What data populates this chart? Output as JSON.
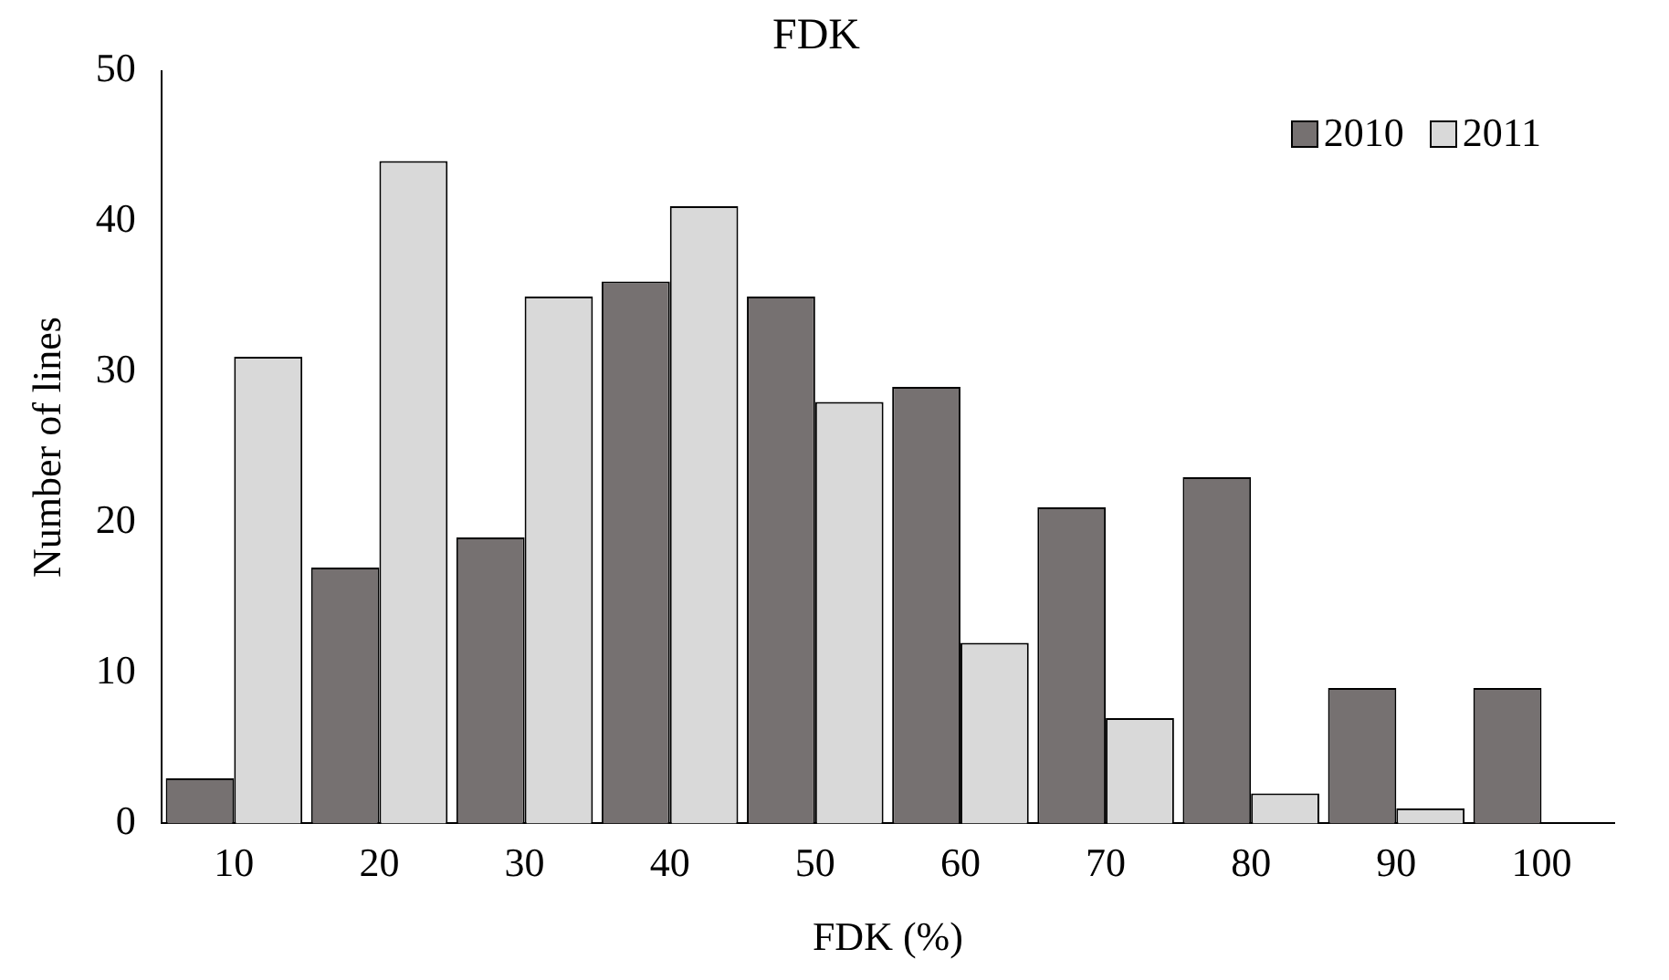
{
  "chart_data": {
    "type": "bar",
    "title": "FDK",
    "xlabel": "FDK (%)",
    "ylabel": "Number of lines",
    "categories": [
      "10",
      "20",
      "30",
      "40",
      "50",
      "60",
      "70",
      "80",
      "90",
      "100"
    ],
    "series": [
      {
        "name": "2010",
        "color": "#767171",
        "values": [
          3,
          17,
          19,
          36,
          35,
          29,
          21,
          23,
          9,
          9
        ]
      },
      {
        "name": "2011",
        "color": "#d9d9d9",
        "values": [
          31,
          44,
          35,
          41,
          28,
          12,
          7,
          2,
          1,
          0
        ]
      }
    ],
    "ylim": [
      0,
      50
    ],
    "yticks": [
      0,
      10,
      20,
      30,
      40,
      50
    ],
    "grid": false,
    "legend": "top right"
  }
}
